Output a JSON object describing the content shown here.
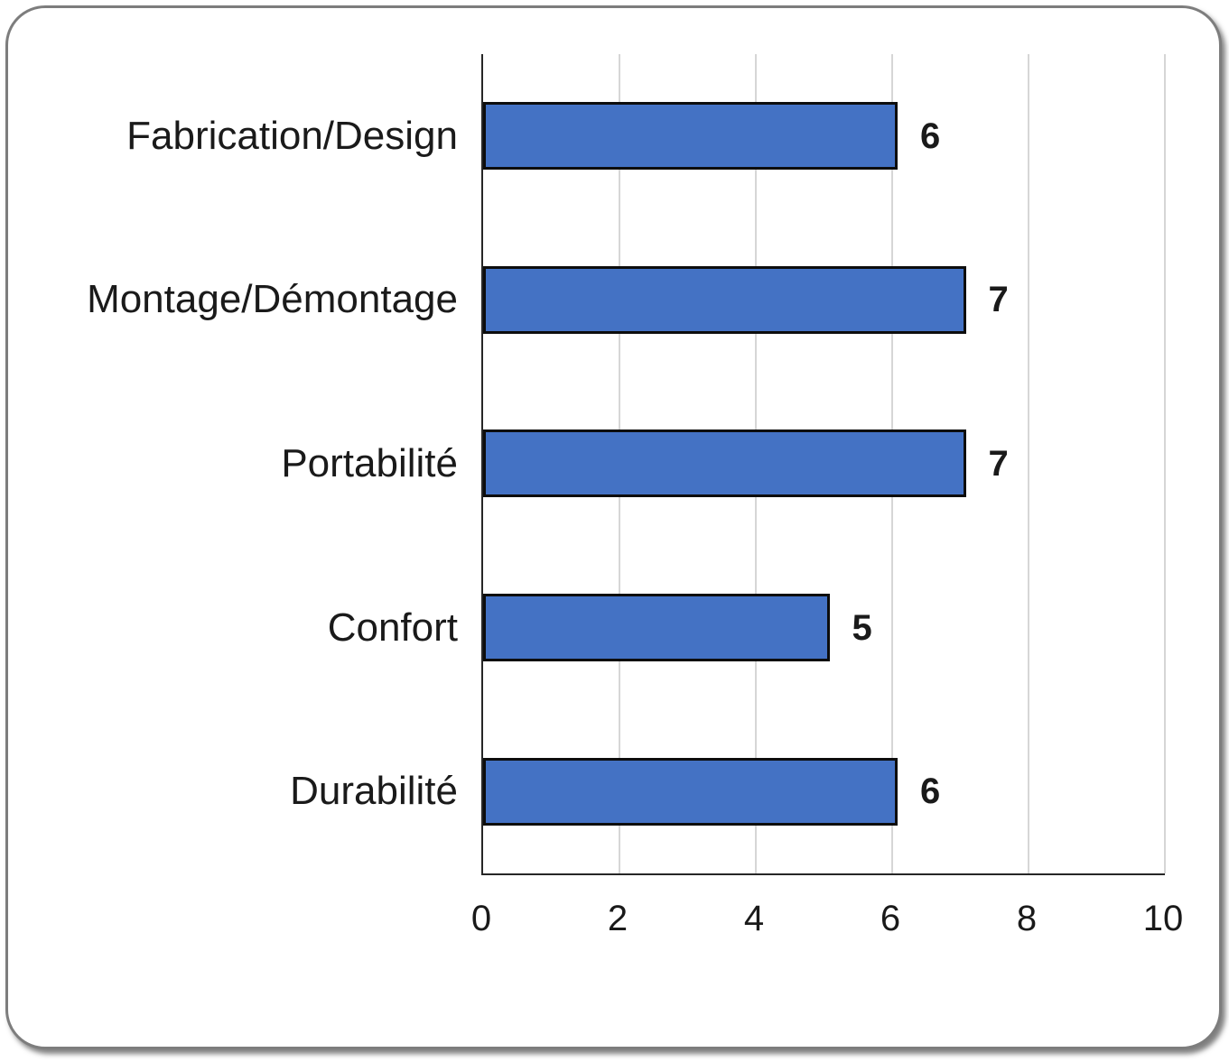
{
  "chart_data": {
    "type": "bar",
    "orientation": "horizontal",
    "title": "",
    "categories": [
      "Fabrication/Design",
      "Montage/Démontage",
      "Portabilité",
      "Confort",
      "Durabilité"
    ],
    "values": [
      6,
      7,
      7,
      5,
      6
    ],
    "data_labels": [
      "6",
      "7",
      "7",
      "5",
      "6"
    ],
    "xlim": [
      0,
      10
    ],
    "x_ticks": [
      "0",
      "2",
      "4",
      "6",
      "8",
      "10"
    ],
    "grid": "vertical-major",
    "legend": "none",
    "xlabel": "",
    "ylabel": "",
    "colors": {
      "bar_fill": "#4472c4",
      "bar_border": "#0d0d0d",
      "gridline": "#d6d6d6",
      "axis_line": "#262626",
      "text": "#1a1a1a",
      "card_border": "#7d7d7d",
      "background": "#ffffff"
    }
  }
}
